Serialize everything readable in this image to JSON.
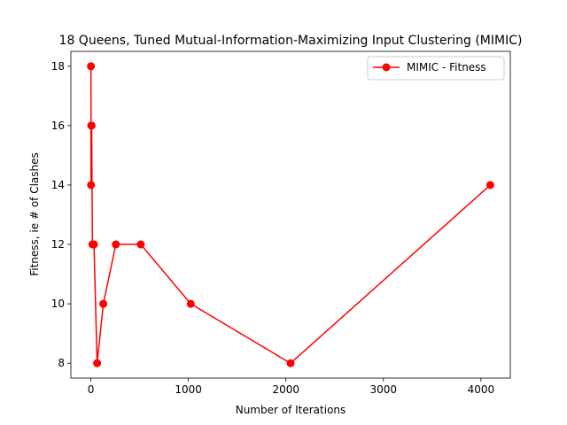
{
  "chart_data": {
    "type": "line",
    "title": "18 Queens, Tuned Mutual-Information-Maximizing Input Clustering (MIMIC)",
    "xlabel": "Number of Iterations",
    "ylabel": "Fitness, ie # of Clashes",
    "xlim": [
      -205,
      4301
    ],
    "ylim": [
      7.5,
      18.5
    ],
    "xticks": [
      0,
      1000,
      2000,
      3000,
      4000
    ],
    "xtick_labels": [
      "0",
      "1000",
      "2000",
      "3000",
      "4000"
    ],
    "yticks": [
      8,
      10,
      12,
      14,
      16,
      18
    ],
    "ytick_labels": [
      "8",
      "10",
      "12",
      "14",
      "16",
      "18"
    ],
    "grid": false,
    "legend_position": "top-right",
    "series": [
      {
        "name": "MIMIC - Fitness",
        "color": "#ff0000",
        "marker": "circle",
        "x": [
          1,
          2,
          4,
          8,
          16,
          32,
          64,
          128,
          256,
          512,
          1024,
          2048,
          4096
        ],
        "y": [
          18,
          14,
          16,
          16,
          12,
          12,
          8,
          10,
          12,
          12,
          10,
          8,
          14
        ]
      }
    ]
  }
}
